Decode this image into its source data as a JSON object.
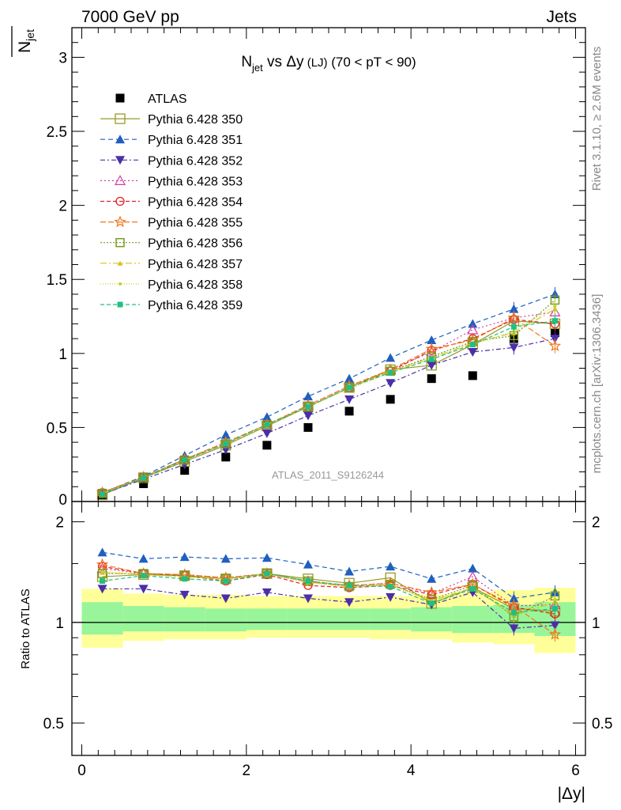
{
  "header": {
    "left": "7000 GeV pp",
    "right": "Jets",
    "side_top": "Rivet 3.1.10, ≥ 2.6M events",
    "side_bottom": "mcplots.cern.ch [arXiv:1306.3436]"
  },
  "chart_data": [
    {
      "type": "scatter",
      "title": "N_jet vs Δy (LJ) (70 < pT < 90)",
      "title_parts": {
        "main": "N",
        "sub": "jet",
        "rest": " vs Δy",
        "small": " (LJ)",
        "tail": " (70 < pT <  90)"
      },
      "ylabel": "N_jet (mean)",
      "ylabel_parts": {
        "main": "N",
        "sub": "jet"
      },
      "watermark": "ATLAS_2011_S9126244",
      "ylim": [
        0,
        3.2
      ],
      "yticks": [
        0,
        0.5,
        1,
        1.5,
        2,
        2.5,
        3
      ],
      "ytick_labels": [
        "0",
        "0.5",
        "1",
        "1.5",
        "2",
        "2.5",
        "3"
      ],
      "xlim": [
        -0.12,
        6.12
      ],
      "x": [
        0.25,
        0.75,
        1.25,
        1.75,
        2.25,
        2.75,
        3.25,
        3.75,
        4.25,
        4.75,
        5.25,
        5.75
      ],
      "legend_position": "top-left",
      "series": [
        {
          "name": "ATLAS",
          "color": "#000000",
          "marker": "sq-filled",
          "dash": "none",
          "values": [
            0.04,
            0.12,
            0.21,
            0.3,
            0.38,
            0.5,
            0.61,
            0.69,
            0.83,
            0.85,
            1.1,
            1.14
          ]
        },
        {
          "name": "Pythia 6.428 350",
          "color": "#9a9a2a",
          "marker": "sq-open",
          "dash": "solid",
          "values": [
            0.045,
            0.16,
            0.27,
            0.38,
            0.51,
            0.64,
            0.77,
            0.89,
            0.92,
            1.06,
            1.22,
            1.2
          ]
        },
        {
          "name": "Pythia 6.428 351",
          "color": "#1f5fbf",
          "marker": "tri-up",
          "dash": "6,4",
          "values": [
            0.06,
            0.17,
            0.31,
            0.45,
            0.57,
            0.71,
            0.83,
            0.97,
            1.09,
            1.2,
            1.3,
            1.4
          ]
        },
        {
          "name": "Pythia 6.428 352",
          "color": "#4b2ea8",
          "marker": "tri-down",
          "dash": "6,3,2,3",
          "values": [
            0.05,
            0.15,
            0.25,
            0.35,
            0.46,
            0.58,
            0.69,
            0.8,
            0.92,
            1.01,
            1.04,
            1.1
          ]
        },
        {
          "name": "Pythia 6.428 353",
          "color": "#d040a0",
          "marker": "tri-open",
          "dash": "2,3",
          "values": [
            0.055,
            0.165,
            0.285,
            0.4,
            0.52,
            0.65,
            0.78,
            0.89,
            1.01,
            1.16,
            1.24,
            1.28
          ]
        },
        {
          "name": "Pythia 6.428 354",
          "color": "#e02020",
          "marker": "circ-open",
          "dash": "5,3",
          "values": [
            0.06,
            0.165,
            0.285,
            0.39,
            0.52,
            0.64,
            0.77,
            0.88,
            1.02,
            1.1,
            1.23,
            1.2
          ]
        },
        {
          "name": "Pythia 6.428 355",
          "color": "#f07820",
          "marker": "star-open",
          "dash": "7,3",
          "values": [
            0.06,
            0.165,
            0.285,
            0.4,
            0.52,
            0.65,
            0.78,
            0.89,
            1.03,
            1.09,
            1.24,
            1.05
          ]
        },
        {
          "name": "Pythia 6.428 356",
          "color": "#7a9a20",
          "marker": "sq-open-small",
          "dash": "2,2",
          "values": [
            0.055,
            0.165,
            0.28,
            0.39,
            0.52,
            0.64,
            0.77,
            0.88,
            0.98,
            1.08,
            1.12,
            1.36
          ]
        },
        {
          "name": "Pythia 6.428 357",
          "color": "#d8c020",
          "marker": "tri-small",
          "dash": "8,3,2,3",
          "values": [
            0.055,
            0.16,
            0.28,
            0.39,
            0.52,
            0.64,
            0.77,
            0.88,
            0.97,
            1.07,
            1.14,
            1.3
          ]
        },
        {
          "name": "Pythia 6.428 358",
          "color": "#c8d030",
          "marker": "dot",
          "dash": "1,2",
          "values": [
            0.055,
            0.16,
            0.28,
            0.39,
            0.52,
            0.64,
            0.76,
            0.87,
            0.97,
            1.06,
            1.15,
            1.32
          ]
        },
        {
          "name": "Pythia 6.428 359",
          "color": "#20c080",
          "marker": "sq-filled-small",
          "dash": "5,3",
          "values": [
            0.05,
            0.16,
            0.28,
            0.39,
            0.52,
            0.64,
            0.77,
            0.87,
            0.96,
            1.06,
            1.18,
            1.22
          ]
        }
      ]
    },
    {
      "type": "scatter",
      "ylabel": "Ratio to ATLAS",
      "xlabel": "|Δy|",
      "ylim": [
        0.4,
        2.3
      ],
      "yscale": "log",
      "yticks": [
        0.5,
        1,
        2
      ],
      "ytick_labels": [
        "0.5",
        "1",
        "2"
      ],
      "xticks": [
        0,
        2,
        4,
        6
      ],
      "xtick_labels": [
        "0",
        "2",
        "4",
        "6"
      ],
      "x": [
        0.25,
        0.75,
        1.25,
        1.75,
        2.25,
        2.75,
        3.25,
        3.75,
        4.25,
        4.75,
        5.25,
        5.75
      ],
      "bin_edges": [
        0,
        0.5,
        1,
        1.5,
        2,
        2.5,
        3,
        3.5,
        4,
        4.5,
        5,
        5.5,
        6
      ],
      "band_yellow": {
        "color": "#ffff99",
        "lo": [
          0.84,
          0.88,
          0.89,
          0.89,
          0.9,
          0.9,
          0.9,
          0.89,
          0.89,
          0.87,
          0.86,
          0.81
        ],
        "hi": [
          1.26,
          1.22,
          1.21,
          1.21,
          1.2,
          1.2,
          1.2,
          1.2,
          1.21,
          1.23,
          1.25,
          1.27
        ]
      },
      "band_green": {
        "color": "#99f599",
        "lo": [
          0.92,
          0.94,
          0.94,
          0.94,
          0.95,
          0.95,
          0.95,
          0.95,
          0.94,
          0.93,
          0.93,
          0.91
        ],
        "hi": [
          1.15,
          1.12,
          1.11,
          1.1,
          1.1,
          1.1,
          1.1,
          1.1,
          1.11,
          1.12,
          1.13,
          1.15
        ]
      },
      "series": [
        {
          "color": "#9a9a2a",
          "marker": "sq-open",
          "dash": "solid",
          "values": [
            1.37,
            1.39,
            1.38,
            1.35,
            1.4,
            1.35,
            1.31,
            1.36,
            1.14,
            1.27,
            1.1,
            1.08
          ]
        },
        {
          "color": "#1f5fbf",
          "marker": "tri-up",
          "dash": "6,4",
          "values": [
            1.62,
            1.55,
            1.57,
            1.55,
            1.56,
            1.49,
            1.42,
            1.47,
            1.35,
            1.45,
            1.18,
            1.23
          ]
        },
        {
          "color": "#4b2ea8",
          "marker": "tri-down",
          "dash": "6,3,2,3",
          "values": [
            1.26,
            1.26,
            1.21,
            1.18,
            1.23,
            1.18,
            1.15,
            1.19,
            1.13,
            1.23,
            0.96,
            0.98
          ]
        },
        {
          "color": "#d040a0",
          "marker": "tri-open",
          "dash": "2,3",
          "values": [
            1.45,
            1.4,
            1.39,
            1.36,
            1.4,
            1.33,
            1.29,
            1.31,
            1.22,
            1.37,
            1.12,
            1.13
          ]
        },
        {
          "color": "#e02020",
          "marker": "circ-open",
          "dash": "5,3",
          "values": [
            1.47,
            1.4,
            1.38,
            1.33,
            1.39,
            1.29,
            1.27,
            1.29,
            1.21,
            1.3,
            1.11,
            1.06
          ]
        },
        {
          "color": "#f07820",
          "marker": "star-open",
          "dash": "7,3",
          "values": [
            1.49,
            1.4,
            1.39,
            1.36,
            1.4,
            1.32,
            1.29,
            1.31,
            1.23,
            1.3,
            1.12,
            0.92
          ]
        },
        {
          "color": "#7a9a20",
          "marker": "sq-open-small",
          "dash": "2,2",
          "values": [
            1.4,
            1.4,
            1.38,
            1.35,
            1.4,
            1.33,
            1.28,
            1.3,
            1.17,
            1.29,
            1.04,
            1.2
          ]
        },
        {
          "color": "#d8c020",
          "marker": "tri-small",
          "dash": "8,3,2,3",
          "values": [
            1.41,
            1.39,
            1.37,
            1.35,
            1.4,
            1.32,
            1.28,
            1.3,
            1.16,
            1.27,
            1.05,
            1.15
          ]
        },
        {
          "color": "#c8d030",
          "marker": "dot",
          "dash": "1,2",
          "values": [
            1.42,
            1.39,
            1.37,
            1.34,
            1.39,
            1.32,
            1.27,
            1.29,
            1.16,
            1.26,
            1.07,
            1.17
          ]
        },
        {
          "color": "#20c080",
          "marker": "sq-filled-small",
          "dash": "5,3",
          "values": [
            1.33,
            1.38,
            1.35,
            1.33,
            1.4,
            1.33,
            1.29,
            1.28,
            1.14,
            1.26,
            1.07,
            1.1
          ]
        }
      ]
    }
  ]
}
